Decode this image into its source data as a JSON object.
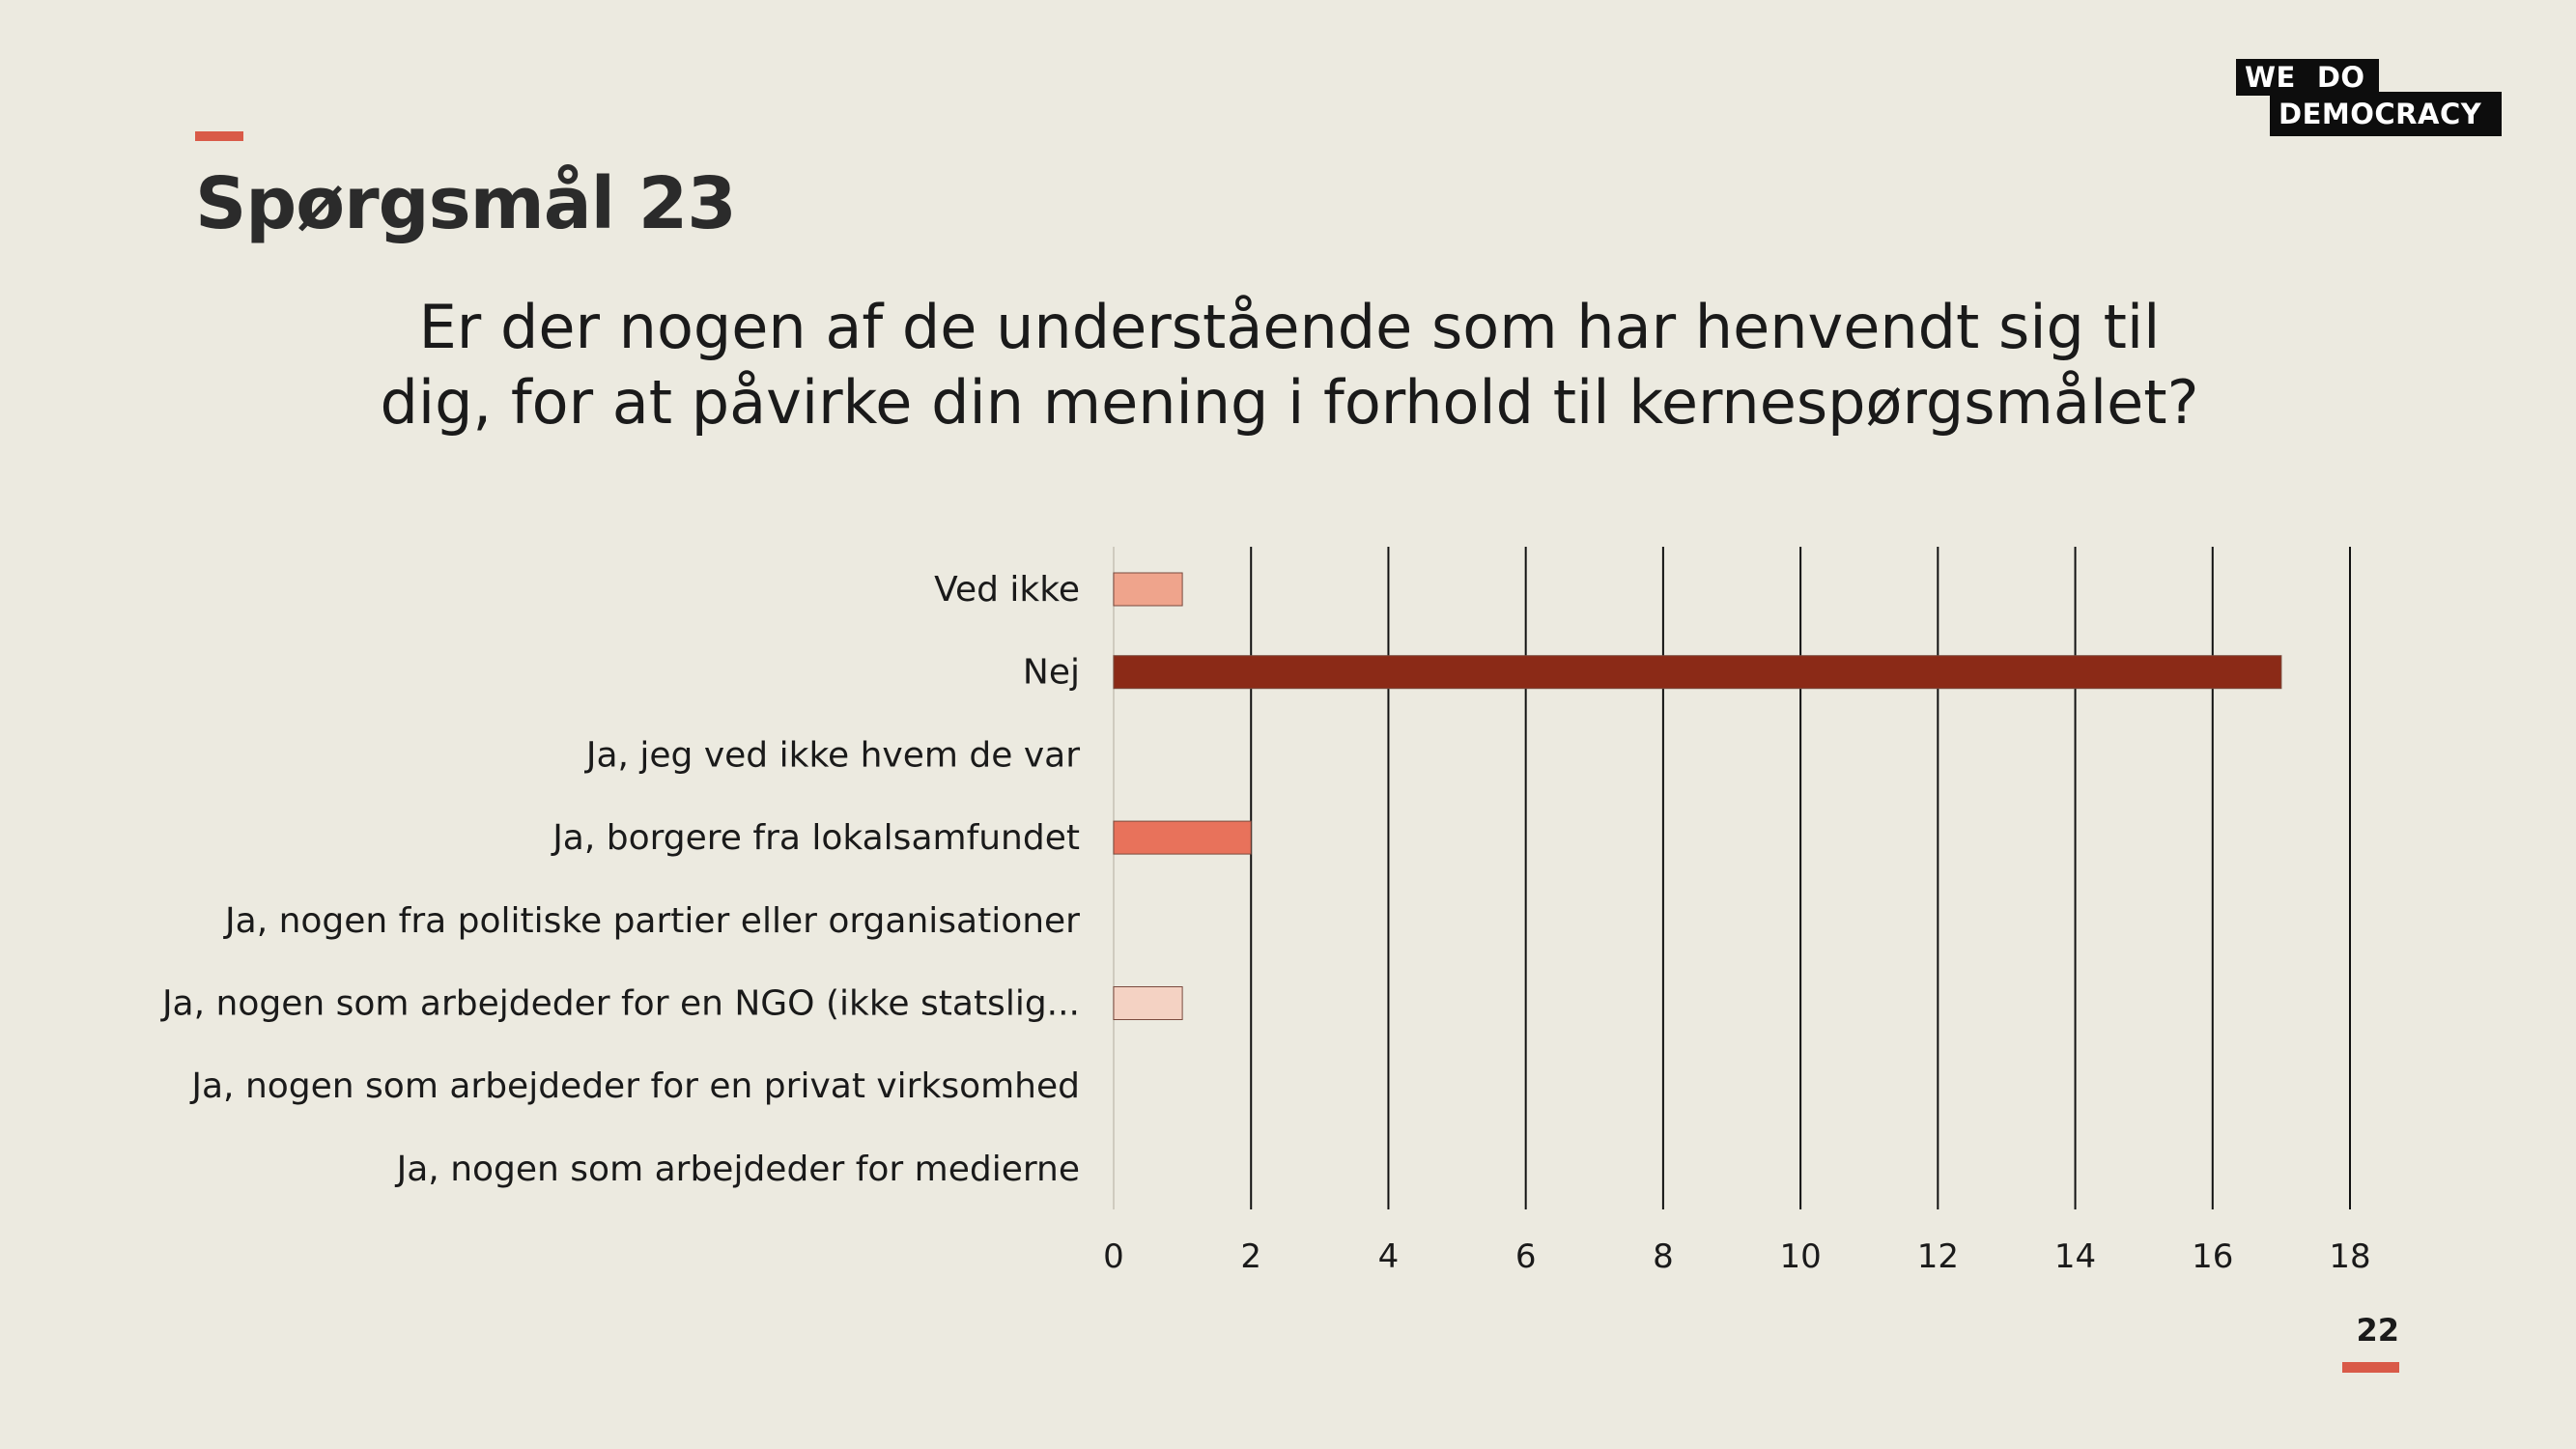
{
  "slide": {
    "title": "Spørgsmål 23",
    "question": "Er der nogen af de understående som har henvendt sig til dig, for at påvirke din mening i forhold til kernespørgsmålet?",
    "page_number": "22",
    "logo": {
      "line1_a": "WE",
      "line1_b": "DO",
      "line2": "DEMOCRACY"
    }
  },
  "colors": {
    "background": "#ECEAE0",
    "accent": "#D95A48",
    "gridline": "#111111",
    "logo_bg": "#0d0d0d"
  },
  "chart_data": {
    "type": "bar",
    "orientation": "horizontal",
    "title": "",
    "xlabel": "",
    "ylabel": "",
    "xlim": [
      0,
      18
    ],
    "xticks": [
      0,
      2,
      4,
      6,
      8,
      10,
      12,
      14,
      16,
      18
    ],
    "grid": "vertical",
    "legend": "none",
    "categories": [
      "Ved ikke",
      "Nej",
      "Ja, jeg ved ikke hvem de var",
      "Ja, borgere fra lokalsamfundet",
      "Ja, nogen fra politiske partier eller organisationer",
      "Ja, nogen som arbejdeder for en NGO (ikke statslig...",
      "Ja, nogen som arbejdeder for en privat virksomhed",
      "Ja, nogen som arbejdeder for medierne"
    ],
    "values": [
      1,
      17,
      0,
      2,
      0,
      1,
      0,
      0
    ],
    "bar_colors": [
      "#EFA48C",
      "#8B2A17",
      "#E6715A",
      "#E8725B",
      "#D8B3A5",
      "#F4D2C3",
      "#E8C0B0",
      "#E8C0B0"
    ]
  }
}
